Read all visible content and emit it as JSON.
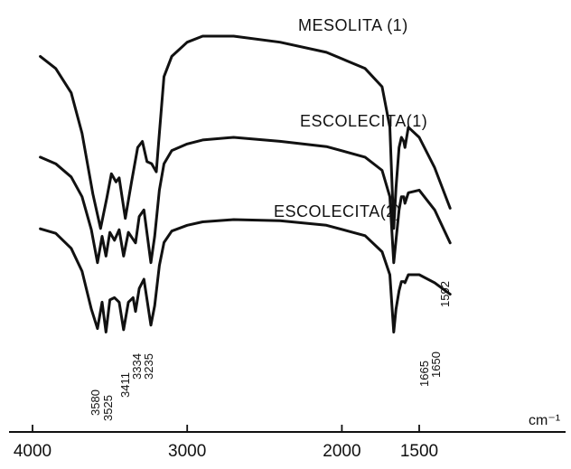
{
  "chart_data": {
    "type": "line",
    "title": "",
    "xlabel": "cm⁻¹",
    "ylabel": "",
    "x_reversed": true,
    "xlim": [
      4100,
      1200
    ],
    "x_ticks": [
      4000,
      3000,
      2000,
      1500
    ],
    "x_tick_labels": [
      "4000",
      "3000",
      "2000",
      "1500"
    ],
    "grid": false,
    "series": [
      {
        "name": "MESOLITA (1)",
        "points": [
          [
            3950,
            0.1
          ],
          [
            3850,
            0.16
          ],
          [
            3750,
            0.28
          ],
          [
            3680,
            0.48
          ],
          [
            3610,
            0.78
          ],
          [
            3560,
            0.95
          ],
          [
            3520,
            0.8
          ],
          [
            3490,
            0.68
          ],
          [
            3460,
            0.72
          ],
          [
            3440,
            0.7
          ],
          [
            3400,
            0.9
          ],
          [
            3360,
            0.72
          ],
          [
            3320,
            0.55
          ],
          [
            3290,
            0.52
          ],
          [
            3260,
            0.62
          ],
          [
            3230,
            0.63
          ],
          [
            3200,
            0.67
          ],
          [
            3180,
            0.48
          ],
          [
            3150,
            0.2
          ],
          [
            3100,
            0.1
          ],
          [
            3000,
            0.03
          ],
          [
            2900,
            0.0
          ],
          [
            2700,
            0.0
          ],
          [
            2400,
            0.03
          ],
          [
            2100,
            0.08
          ],
          [
            1850,
            0.16
          ],
          [
            1740,
            0.25
          ],
          [
            1690,
            0.45
          ],
          [
            1665,
            0.95
          ],
          [
            1650,
            0.75
          ],
          [
            1630,
            0.55
          ],
          [
            1615,
            0.5
          ],
          [
            1600,
            0.52
          ],
          [
            1592,
            0.55
          ],
          [
            1570,
            0.45
          ],
          [
            1500,
            0.5
          ],
          [
            1400,
            0.65
          ],
          [
            1300,
            0.85
          ]
        ]
      },
      {
        "name": "ESCOLECITA(1)",
        "points": [
          [
            3950,
            0.15
          ],
          [
            3850,
            0.2
          ],
          [
            3750,
            0.3
          ],
          [
            3680,
            0.45
          ],
          [
            3620,
            0.7
          ],
          [
            3580,
            0.95
          ],
          [
            3550,
            0.75
          ],
          [
            3525,
            0.9
          ],
          [
            3500,
            0.72
          ],
          [
            3470,
            0.78
          ],
          [
            3440,
            0.7
          ],
          [
            3411,
            0.9
          ],
          [
            3380,
            0.72
          ],
          [
            3334,
            0.8
          ],
          [
            3310,
            0.6
          ],
          [
            3280,
            0.55
          ],
          [
            3235,
            0.95
          ],
          [
            3210,
            0.75
          ],
          [
            3180,
            0.4
          ],
          [
            3150,
            0.2
          ],
          [
            3100,
            0.1
          ],
          [
            3000,
            0.05
          ],
          [
            2900,
            0.02
          ],
          [
            2700,
            0.0
          ],
          [
            2400,
            0.03
          ],
          [
            2100,
            0.07
          ],
          [
            1850,
            0.15
          ],
          [
            1740,
            0.25
          ],
          [
            1690,
            0.45
          ],
          [
            1665,
            0.95
          ],
          [
            1650,
            0.78
          ],
          [
            1630,
            0.55
          ],
          [
            1615,
            0.45
          ],
          [
            1600,
            0.45
          ],
          [
            1592,
            0.5
          ],
          [
            1570,
            0.42
          ],
          [
            1500,
            0.4
          ],
          [
            1400,
            0.55
          ],
          [
            1300,
            0.8
          ]
        ]
      },
      {
        "name": "ESCOLECITA(2)",
        "points": [
          [
            3950,
            0.08
          ],
          [
            3850,
            0.12
          ],
          [
            3750,
            0.25
          ],
          [
            3680,
            0.45
          ],
          [
            3620,
            0.78
          ],
          [
            3580,
            0.95
          ],
          [
            3550,
            0.72
          ],
          [
            3525,
            0.98
          ],
          [
            3500,
            0.7
          ],
          [
            3470,
            0.68
          ],
          [
            3440,
            0.72
          ],
          [
            3411,
            0.96
          ],
          [
            3380,
            0.72
          ],
          [
            3350,
            0.68
          ],
          [
            3334,
            0.8
          ],
          [
            3310,
            0.6
          ],
          [
            3280,
            0.52
          ],
          [
            3235,
            0.92
          ],
          [
            3210,
            0.75
          ],
          [
            3180,
            0.4
          ],
          [
            3150,
            0.2
          ],
          [
            3100,
            0.1
          ],
          [
            3000,
            0.05
          ],
          [
            2900,
            0.02
          ],
          [
            2700,
            0.0
          ],
          [
            2400,
            0.01
          ],
          [
            2100,
            0.05
          ],
          [
            1850,
            0.14
          ],
          [
            1740,
            0.28
          ],
          [
            1690,
            0.48
          ],
          [
            1665,
            0.98
          ],
          [
            1650,
            0.78
          ],
          [
            1630,
            0.62
          ],
          [
            1615,
            0.54
          ],
          [
            1600,
            0.54
          ],
          [
            1592,
            0.55
          ],
          [
            1570,
            0.48
          ],
          [
            1500,
            0.48
          ],
          [
            1400,
            0.55
          ],
          [
            1300,
            0.65
          ]
        ]
      }
    ],
    "peak_labels": [
      "3580",
      "3525",
      "3411",
      "3334",
      "3235",
      "1665",
      "1650",
      "1592"
    ]
  }
}
